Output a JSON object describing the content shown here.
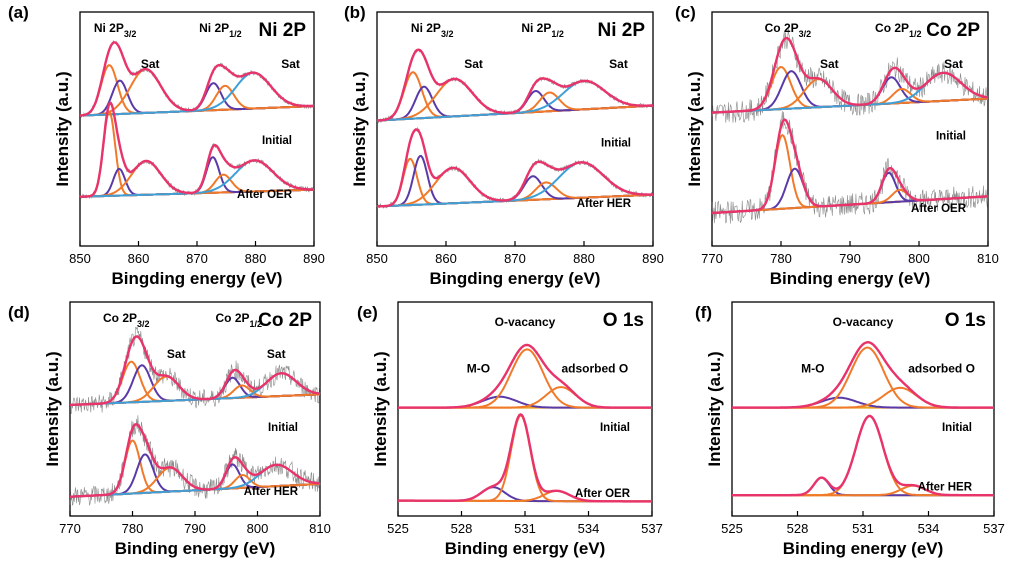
{
  "colors": {
    "envelope": "#e8336b",
    "comp_a": "#f07a2a",
    "comp_b": "#5a3aa8",
    "comp_c": "#3fa0d8",
    "background_line": "#e8a020",
    "raw": "#555555"
  },
  "chart_data": [
    {
      "type": "line",
      "panel_label": "(a)",
      "title": "Ni 2P",
      "xlabel": "Bingding energy (eV)",
      "ylabel": "Intensity (a.u.)",
      "xlim": [
        850,
        890
      ],
      "xticks": [
        850,
        860,
        870,
        880,
        890
      ],
      "x_reversed": false,
      "annotations": [
        {
          "text": "Ni 2P",
          "sub": "3/2",
          "x": 856
        },
        {
          "text": "Sat",
          "x": 862
        },
        {
          "text": "Ni 2P",
          "sub": "1/2",
          "x": 874
        },
        {
          "text": "Sat",
          "x": 886
        }
      ],
      "spectra": [
        {
          "condition": "Initial",
          "background": [
            0.08,
            0.2
          ],
          "peaks": [
            {
              "center": 855.0,
              "height": 0.62,
              "width": 1.4,
              "color": "comp_a"
            },
            {
              "center": 856.8,
              "height": 0.42,
              "width": 1.3,
              "color": "comp_b"
            },
            {
              "center": 861.2,
              "height": 0.55,
              "width": 2.6,
              "color": "comp_a"
            },
            {
              "center": 872.8,
              "height": 0.34,
              "width": 1.3,
              "color": "comp_b"
            },
            {
              "center": 874.8,
              "height": 0.3,
              "width": 1.5,
              "color": "comp_a"
            },
            {
              "center": 879.6,
              "height": 0.45,
              "width": 3.0,
              "color": "comp_c"
            }
          ]
        },
        {
          "condition": "After OER",
          "background": [
            0.08,
            0.16
          ],
          "peaks": [
            {
              "center": 855.0,
              "height": 0.95,
              "width": 1.0,
              "color": "comp_a"
            },
            {
              "center": 856.7,
              "height": 0.3,
              "width": 1.0,
              "color": "comp_b"
            },
            {
              "center": 861.3,
              "height": 0.38,
              "width": 2.5,
              "color": "comp_a"
            },
            {
              "center": 872.7,
              "height": 0.4,
              "width": 1.1,
              "color": "comp_b"
            },
            {
              "center": 874.5,
              "height": 0.2,
              "width": 1.4,
              "color": "comp_a"
            },
            {
              "center": 879.8,
              "height": 0.35,
              "width": 3.2,
              "color": "comp_c"
            }
          ]
        }
      ]
    },
    {
      "type": "line",
      "panel_label": "(b)",
      "title": "Ni 2P",
      "xlabel": "Bingding energy (eV)",
      "ylabel": "Intensity (a.u.)",
      "xlim": [
        850,
        890
      ],
      "xticks": [
        850,
        860,
        870,
        880,
        890
      ],
      "x_reversed": false,
      "annotations": [
        {
          "text": "Ni 2P",
          "sub": "3/2",
          "x": 858
        },
        {
          "text": "Sat",
          "x": 864
        },
        {
          "text": "Ni 2P",
          "sub": "1/2",
          "x": 874
        },
        {
          "text": "Sat",
          "x": 885
        }
      ],
      "spectra": [
        {
          "condition": "Initial",
          "background": [
            0.05,
            0.25
          ],
          "peaks": [
            {
              "center": 855.2,
              "height": 0.62,
              "width": 1.3,
              "color": "comp_a"
            },
            {
              "center": 856.8,
              "height": 0.42,
              "width": 1.2,
              "color": "comp_b"
            },
            {
              "center": 861.2,
              "height": 0.5,
              "width": 2.6,
              "color": "comp_a"
            },
            {
              "center": 873.0,
              "height": 0.28,
              "width": 1.2,
              "color": "comp_b"
            },
            {
              "center": 875.0,
              "height": 0.25,
              "width": 1.4,
              "color": "comp_a"
            },
            {
              "center": 880.0,
              "height": 0.38,
              "width": 3.0,
              "color": "comp_c"
            }
          ]
        },
        {
          "condition": "After HER",
          "background": [
            0.08,
            0.22
          ],
          "peaks": [
            {
              "center": 854.8,
              "height": 0.55,
              "width": 1.0,
              "color": "comp_a"
            },
            {
              "center": 856.3,
              "height": 0.58,
              "width": 1.0,
              "color": "comp_b"
            },
            {
              "center": 861.0,
              "height": 0.42,
              "width": 2.5,
              "color": "comp_a"
            },
            {
              "center": 872.6,
              "height": 0.28,
              "width": 1.3,
              "color": "comp_b"
            },
            {
              "center": 874.5,
              "height": 0.2,
              "width": 1.5,
              "color": "comp_a"
            },
            {
              "center": 879.6,
              "height": 0.42,
              "width": 3.2,
              "color": "comp_c"
            }
          ]
        }
      ]
    },
    {
      "type": "line",
      "panel_label": "(c)",
      "title": "Co 2P",
      "xlabel": "Binding energy (eV)",
      "ylabel": "Intensity (a.u.)",
      "xlim": [
        770,
        810
      ],
      "xticks": [
        770,
        780,
        790,
        800,
        810
      ],
      "x_reversed": false,
      "annotations": [
        {
          "text": "Co 2P",
          "sub": "3/2",
          "x": 781
        },
        {
          "text": "Sat",
          "x": 787
        },
        {
          "text": "Co 2P",
          "sub": "1/2",
          "x": 797
        },
        {
          "text": "Sat",
          "x": 805
        }
      ],
      "spectra": [
        {
          "condition": "Initial",
          "background": [
            0.05,
            0.2
          ],
          "peaks": [
            {
              "center": 780.0,
              "height": 0.45,
              "width": 1.4,
              "color": "comp_a"
            },
            {
              "center": 781.5,
              "height": 0.4,
              "width": 1.4,
              "color": "comp_b"
            },
            {
              "center": 785.4,
              "height": 0.3,
              "width": 2.0,
              "color": "comp_a"
            },
            {
              "center": 796.0,
              "height": 0.28,
              "width": 1.3,
              "color": "comp_b"
            },
            {
              "center": 797.5,
              "height": 0.15,
              "width": 1.3,
              "color": "comp_a"
            },
            {
              "center": 803.5,
              "height": 0.3,
              "width": 2.6,
              "color": "comp_c"
            }
          ]
        },
        {
          "condition": "After OER",
          "background": [
            0.05,
            0.22
          ],
          "peaks": [
            {
              "center": 780.2,
              "height": 0.75,
              "width": 1.1,
              "color": "comp_a"
            },
            {
              "center": 782.0,
              "height": 0.4,
              "width": 1.2,
              "color": "comp_b"
            },
            {
              "center": 795.6,
              "height": 0.3,
              "width": 1.0,
              "color": "comp_b"
            },
            {
              "center": 797.2,
              "height": 0.12,
              "width": 1.1,
              "color": "comp_a"
            }
          ]
        }
      ]
    },
    {
      "type": "line",
      "panel_label": "(d)",
      "title": "Co 2P",
      "xlabel": "Binding energy (eV)",
      "ylabel": "Intensity (a.u.)",
      "xlim": [
        770,
        810
      ],
      "xticks": [
        770,
        780,
        790,
        800,
        810
      ],
      "x_reversed": false,
      "annotations": [
        {
          "text": "Co 2P",
          "sub": "3/2",
          "x": 779
        },
        {
          "text": "Sat",
          "x": 787
        },
        {
          "text": "Co 2P",
          "sub": "1/2",
          "x": 797
        },
        {
          "text": "Sat",
          "x": 803
        }
      ],
      "spectra": [
        {
          "condition": "Initial",
          "background": [
            0.05,
            0.18
          ],
          "peaks": [
            {
              "center": 779.8,
              "height": 0.5,
              "width": 1.4,
              "color": "comp_a"
            },
            {
              "center": 781.5,
              "height": 0.45,
              "width": 1.4,
              "color": "comp_b"
            },
            {
              "center": 785.4,
              "height": 0.3,
              "width": 2.0,
              "color": "comp_a"
            },
            {
              "center": 796.0,
              "height": 0.25,
              "width": 1.2,
              "color": "comp_b"
            },
            {
              "center": 797.5,
              "height": 0.15,
              "width": 1.3,
              "color": "comp_a"
            },
            {
              "center": 803.8,
              "height": 0.28,
              "width": 2.4,
              "color": "comp_c"
            }
          ]
        },
        {
          "condition": "After HER",
          "background": [
            0.05,
            0.2
          ],
          "peaks": [
            {
              "center": 780.0,
              "height": 0.62,
              "width": 1.2,
              "color": "comp_a"
            },
            {
              "center": 782.0,
              "height": 0.45,
              "width": 1.3,
              "color": "comp_b"
            },
            {
              "center": 786.0,
              "height": 0.28,
              "width": 2.0,
              "color": "comp_a"
            },
            {
              "center": 796.0,
              "height": 0.28,
              "width": 1.1,
              "color": "comp_b"
            },
            {
              "center": 797.6,
              "height": 0.15,
              "width": 1.2,
              "color": "comp_a"
            },
            {
              "center": 803.0,
              "height": 0.25,
              "width": 2.6,
              "color": "comp_c"
            }
          ]
        }
      ]
    },
    {
      "type": "line",
      "panel_label": "(e)",
      "title": "O 1s",
      "xlabel": "Binding energy (eV)",
      "ylabel": "Intensity (a.u.)",
      "xlim": [
        525,
        537
      ],
      "xticks": [
        525,
        528,
        531,
        534,
        537
      ],
      "x_reversed": false,
      "annotations": [
        {
          "text": "O-vacancy",
          "x": 531
        },
        {
          "text": "M-O",
          "x": 528.8
        },
        {
          "text": "adsorbed O",
          "x": 534.3
        }
      ],
      "spectra": [
        {
          "condition": "Initial",
          "background": [
            0.02,
            0.02
          ],
          "peaks": [
            {
              "center": 529.8,
              "height": 0.16,
              "width": 0.8,
              "color": "comp_b"
            },
            {
              "center": 531.1,
              "height": 0.85,
              "width": 0.75,
              "color": "comp_a"
            },
            {
              "center": 532.7,
              "height": 0.3,
              "width": 0.7,
              "color": "comp_a"
            }
          ]
        },
        {
          "condition": "After OER",
          "background": [
            0.03,
            0.02
          ],
          "peaks": [
            {
              "center": 529.5,
              "height": 0.16,
              "width": 0.55,
              "color": "comp_b"
            },
            {
              "center": 530.8,
              "height": 1.0,
              "width": 0.45,
              "color": "comp_a"
            },
            {
              "center": 532.5,
              "height": 0.12,
              "width": 0.6,
              "color": "comp_a"
            }
          ]
        }
      ]
    },
    {
      "type": "line",
      "panel_label": "(f)",
      "title": "O 1s",
      "xlabel": "Binding energy (eV)",
      "ylabel": "Intensity (a.u.)",
      "xlim": [
        525,
        537
      ],
      "xticks": [
        525,
        528,
        531,
        534,
        537
      ],
      "x_reversed": false,
      "annotations": [
        {
          "text": "O-vacancy",
          "x": 531
        },
        {
          "text": "M-O",
          "x": 528.7
        },
        {
          "text": "adsorbed O",
          "x": 534.6
        }
      ],
      "spectra": [
        {
          "condition": "Initial",
          "background": [
            0.02,
            0.02
          ],
          "peaks": [
            {
              "center": 529.9,
              "height": 0.14,
              "width": 0.8,
              "color": "comp_b"
            },
            {
              "center": 531.2,
              "height": 0.85,
              "width": 0.75,
              "color": "comp_a"
            },
            {
              "center": 532.7,
              "height": 0.28,
              "width": 0.75,
              "color": "comp_a"
            }
          ]
        },
        {
          "condition": "After HER",
          "background": [
            0.02,
            0.02
          ],
          "peaks": [
            {
              "center": 529.1,
              "height": 0.22,
              "width": 0.35,
              "color": "comp_b"
            },
            {
              "center": 531.3,
              "height": 1.0,
              "width": 0.62,
              "color": "comp_a"
            },
            {
              "center": 533.3,
              "height": 0.12,
              "width": 0.55,
              "color": "comp_a"
            }
          ]
        }
      ]
    }
  ]
}
